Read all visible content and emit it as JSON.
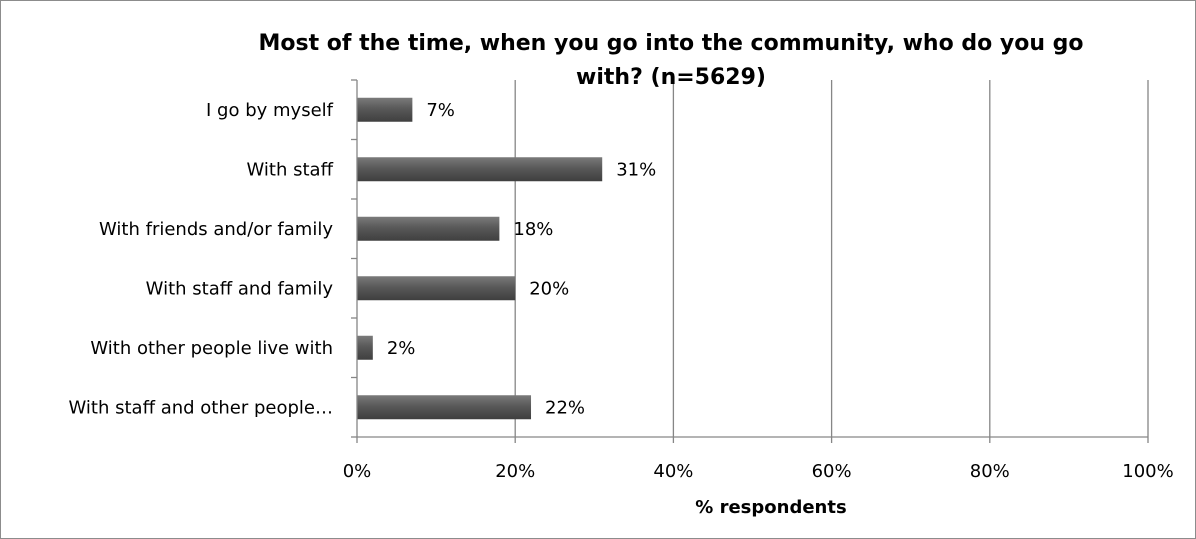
{
  "chart_data": {
    "type": "bar",
    "orientation": "horizontal",
    "title_lines": [
      "Most of the time, when you go into the community, who do you go",
      "with? (n=5629)"
    ],
    "categories": [
      "I go by myself",
      "With staff",
      "With friends and/or family",
      "With staff and family",
      "With other people live with",
      "With staff and other people…"
    ],
    "values": [
      7,
      31,
      18,
      20,
      2,
      22
    ],
    "data_labels": [
      "7%",
      "31%",
      "18%",
      "20%",
      "2%",
      "22%"
    ],
    "xlabel": "% respondents",
    "ylabel": "",
    "xlim": [
      0,
      100
    ],
    "x_ticks": [
      0,
      20,
      40,
      60,
      80,
      100
    ],
    "x_tick_labels": [
      "0%",
      "20%",
      "40%",
      "60%",
      "80%",
      "100%"
    ],
    "grid": "vertical",
    "legend": "none",
    "bar_color": "#595959",
    "bar_highlight": "#7a7a7a",
    "grid_color": "#868686",
    "axis_color": "#868686"
  }
}
